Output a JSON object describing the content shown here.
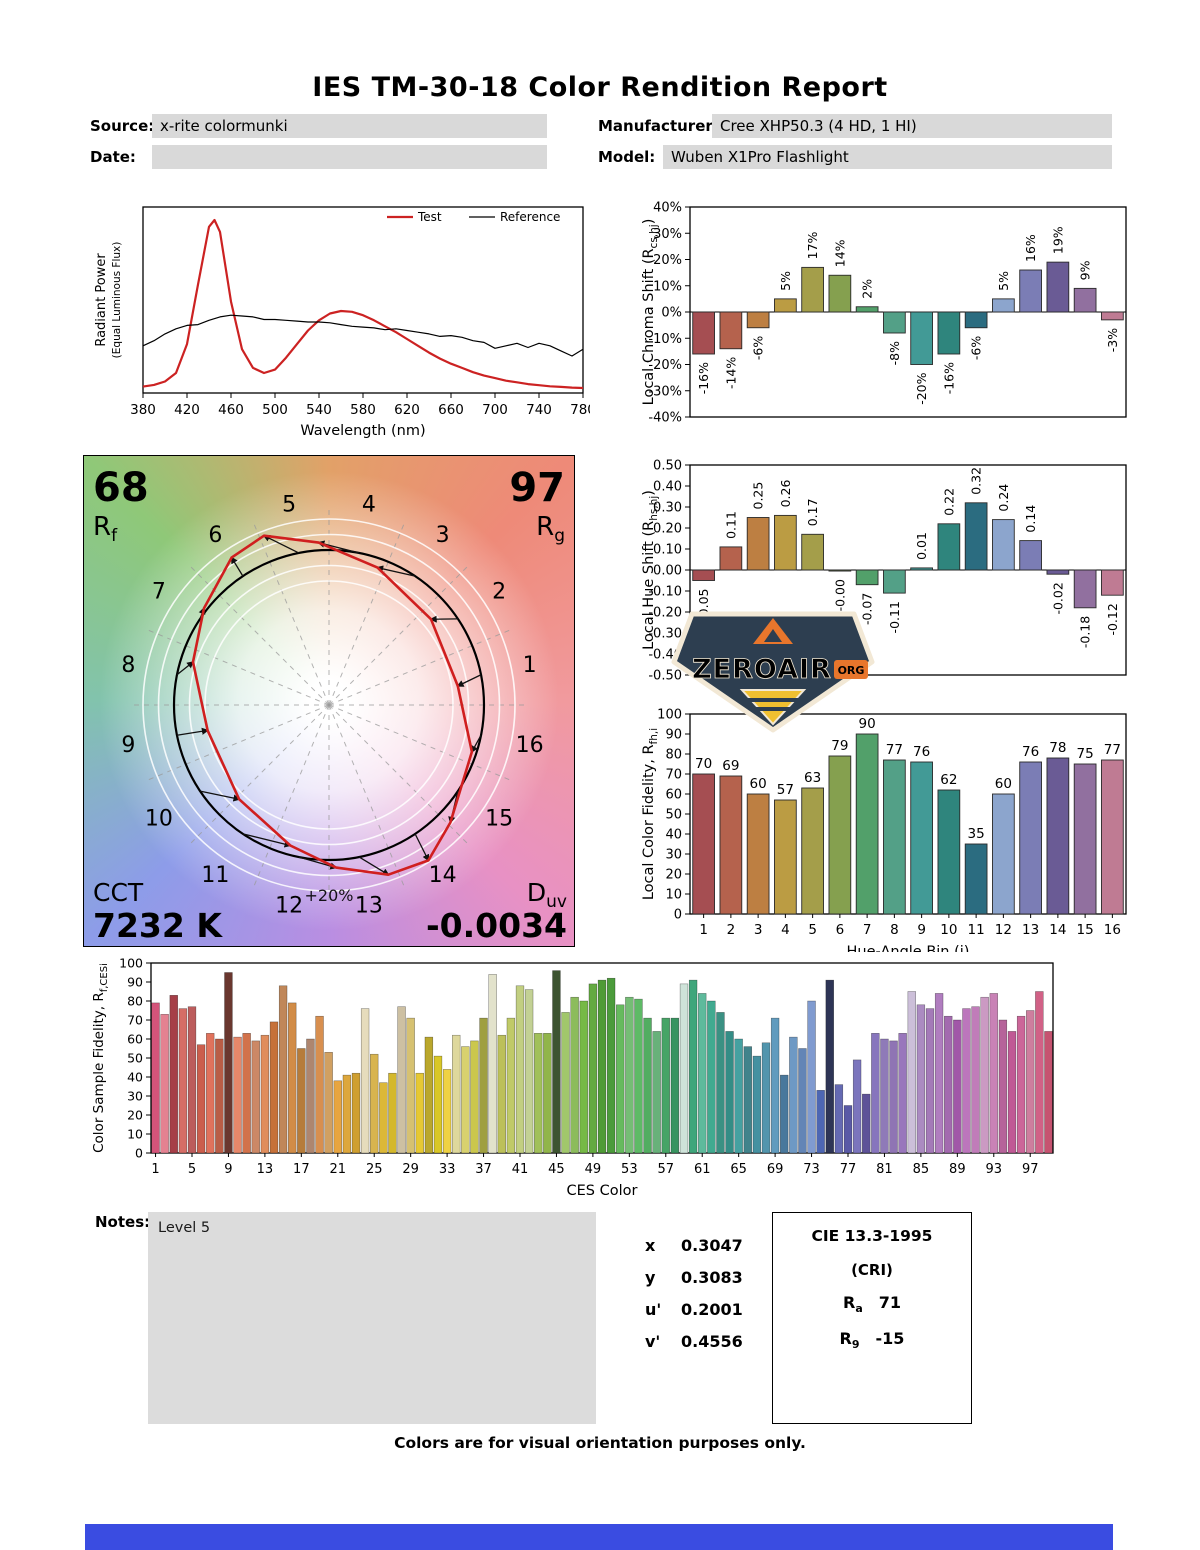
{
  "page": {
    "title": "IES TM-30-18 Color Rendition Report",
    "footer_note": "Colors are for visual orientation purposes only."
  },
  "header": {
    "source_label": "Source:",
    "source_value": "x-rite colormunki",
    "date_label": "Date:",
    "date_value": "",
    "manufacturer_label": "Manufacturer:",
    "manufacturer_value": "Cree XHP50.3 (4 HD, 1 HI)",
    "model_label": "Model:",
    "model_value": "Wuben X1Pro Flashlight"
  },
  "notes": {
    "label": "Notes:",
    "text": "Level 5"
  },
  "chromaticity": {
    "rows": [
      {
        "label": "x",
        "value": "0.3047"
      },
      {
        "label": "y",
        "value": "0.3083"
      },
      {
        "label": "u'",
        "value": "0.2001"
      },
      {
        "label": "v'",
        "value": "0.4556"
      }
    ]
  },
  "cri_box": {
    "title": "CIE 13.3-1995",
    "subtitle": "(CRI)",
    "rows": [
      {
        "base": "R",
        "sub": "a",
        "value": "71"
      },
      {
        "base": "R",
        "sub": "9",
        "value": "-15"
      }
    ]
  },
  "logo": {
    "name": "ZEROAIR",
    "org": "ORG"
  },
  "colors": {
    "field_bg": "#d9d9d9",
    "notes_bg": "#dcdcdc",
    "test_line": "#cc2222",
    "reference_line": "#000000",
    "footer_bar": "#3a4ce1",
    "logo_navy": "#2d3e50",
    "logo_cream": "#f2e8d5",
    "logo_orange": "#e8762c",
    "logo_gold": "#f0c030",
    "bin_colors": [
      "#a54e52",
      "#b5624d",
      "#bd7f42",
      "#bb9c43",
      "#a49e4a",
      "#85a04f",
      "#52a06a",
      "#53a087",
      "#429a96",
      "#2f857d",
      "#2b6c80",
      "#8ca5cd",
      "#7b7db5",
      "#6a5b95",
      "#91709f",
      "#bf7b93"
    ]
  },
  "chart_data": [
    {
      "id": "spd",
      "type": "line",
      "xlabel": "Wavelength (nm)",
      "ylabel_line1": "Radiant Power",
      "ylabel_line2": "(Equal Luminous Flux)",
      "xlim": [
        380,
        780
      ],
      "xticks": [
        380,
        420,
        460,
        500,
        540,
        580,
        620,
        660,
        700,
        740,
        780
      ],
      "legend": [
        {
          "label": "Test",
          "color": "#cc2222",
          "text_color": "#cc2222",
          "width": 2.2
        },
        {
          "label": "Reference",
          "color": "#000000",
          "text_color": "#000000",
          "width": 1.2
        }
      ],
      "series": [
        {
          "name": "Test",
          "color": "#cc2222",
          "width": 2.2,
          "x": [
            380,
            390,
            400,
            410,
            420,
            430,
            440,
            445,
            450,
            460,
            470,
            480,
            490,
            500,
            510,
            520,
            530,
            540,
            550,
            560,
            570,
            580,
            590,
            600,
            610,
            620,
            630,
            640,
            650,
            660,
            670,
            680,
            690,
            700,
            710,
            720,
            730,
            740,
            750,
            760,
            770,
            780
          ],
          "values": [
            0.02,
            0.03,
            0.05,
            0.1,
            0.27,
            0.62,
            0.96,
            1.0,
            0.93,
            0.52,
            0.24,
            0.13,
            0.1,
            0.12,
            0.19,
            0.27,
            0.35,
            0.41,
            0.45,
            0.465,
            0.46,
            0.44,
            0.41,
            0.375,
            0.34,
            0.3,
            0.26,
            0.22,
            0.185,
            0.155,
            0.13,
            0.105,
            0.085,
            0.07,
            0.055,
            0.045,
            0.035,
            0.028,
            0.022,
            0.018,
            0.014,
            0.012
          ]
        },
        {
          "name": "Reference",
          "color": "#000000",
          "width": 1.2,
          "x": [
            380,
            390,
            400,
            410,
            420,
            430,
            440,
            450,
            460,
            470,
            480,
            490,
            500,
            510,
            520,
            530,
            540,
            550,
            560,
            570,
            580,
            590,
            600,
            610,
            620,
            630,
            640,
            650,
            660,
            670,
            680,
            690,
            700,
            710,
            720,
            730,
            740,
            750,
            760,
            770,
            780
          ],
          "values": [
            0.26,
            0.29,
            0.33,
            0.36,
            0.38,
            0.385,
            0.41,
            0.43,
            0.44,
            0.435,
            0.43,
            0.415,
            0.415,
            0.41,
            0.405,
            0.4,
            0.4,
            0.395,
            0.385,
            0.375,
            0.37,
            0.365,
            0.355,
            0.36,
            0.35,
            0.34,
            0.33,
            0.315,
            0.32,
            0.31,
            0.29,
            0.28,
            0.245,
            0.26,
            0.275,
            0.25,
            0.275,
            0.26,
            0.23,
            0.2,
            0.24
          ]
        }
      ]
    },
    {
      "id": "chroma_shift",
      "type": "bar",
      "ylabel": {
        "pre": "Local Chroma Shift (R",
        "sub": "cs,hj",
        "post": ")"
      },
      "values": [
        -16,
        -14,
        -6,
        5,
        17,
        14,
        2,
        -8,
        -20,
        -16,
        -6,
        5,
        16,
        19,
        9,
        -3
      ],
      "bar_labels": [
        "-16%",
        "-14%",
        "-6%",
        "5%",
        "17%",
        "14%",
        "2%",
        "-8%",
        "-20%",
        "-16%",
        "-6%",
        "5%",
        "16%",
        "19%",
        "9%",
        "-3%"
      ],
      "ylim": [
        -40,
        40
      ],
      "ytick_values": [
        40,
        30,
        20,
        10,
        0,
        -10,
        -20,
        -30,
        -40
      ],
      "ytick_labels": [
        "40%",
        "30%",
        "20%",
        "10%",
        "0%",
        "-10%",
        "-20%",
        "-30%",
        "-40%"
      ]
    },
    {
      "id": "hue_shift",
      "type": "bar",
      "ylabel": {
        "pre": "Local Hue Shift (R",
        "sub": "hs,hj",
        "post": ")"
      },
      "values": [
        -0.05,
        0.11,
        0.25,
        0.26,
        0.17,
        -0.005,
        -0.07,
        -0.11,
        0.01,
        0.22,
        0.32,
        0.24,
        0.14,
        -0.02,
        -0.18,
        -0.12
      ],
      "bar_labels": [
        "-0.05",
        "0.11",
        "0.25",
        "0.26",
        "0.17",
        "-0.00",
        "-0.07",
        "-0.11",
        "0.01",
        "0.22",
        "0.32",
        "0.24",
        "0.14",
        "-0.02",
        "-0.18",
        "-0.12"
      ],
      "ylim": [
        -0.5,
        0.5
      ],
      "ytick_values": [
        0.5,
        0.4,
        0.3,
        0.2,
        0.1,
        0,
        -0.1,
        -0.2,
        -0.3,
        -0.4,
        -0.5
      ],
      "ytick_labels": [
        "0.50",
        "0.40",
        "0.30",
        "0.20",
        "0.10",
        "0.00",
        "-0.10",
        "-0.20",
        "-0.30",
        "-0.40",
        "-0.50"
      ]
    },
    {
      "id": "local_fidelity",
      "type": "bar",
      "xlabel": "Hue-Angle Bin (j)",
      "ylabel": {
        "pre": "Local Color Fidelity, R",
        "sub": "fh,i",
        "post": ""
      },
      "categories": [
        1,
        2,
        3,
        4,
        5,
        6,
        7,
        8,
        9,
        10,
        11,
        12,
        13,
        14,
        15,
        16
      ],
      "values": [
        70,
        69,
        60,
        57,
        63,
        79,
        90,
        77,
        76,
        62,
        35,
        60,
        76,
        78,
        75,
        77
      ],
      "bar_labels": [
        "70",
        "69",
        "60",
        "57",
        "63",
        "79",
        "90",
        "77",
        "76",
        "62",
        "35",
        "60",
        "76",
        "78",
        "75",
        "77"
      ],
      "ylim": [
        0,
        100
      ],
      "ytick_values": [
        0,
        10,
        20,
        30,
        40,
        50,
        60,
        70,
        80,
        90,
        100
      ]
    },
    {
      "id": "ces_fidelity",
      "type": "bar",
      "xlabel": "CES Color",
      "ylabel": {
        "pre": "Color Sample Fidelity, R",
        "sub": "f,CESi",
        "post": ""
      },
      "xticks": [
        1,
        5,
        9,
        13,
        17,
        21,
        25,
        29,
        33,
        37,
        41,
        45,
        49,
        53,
        57,
        61,
        65,
        69,
        73,
        77,
        81,
        85,
        89,
        93,
        97
      ],
      "ylim": [
        0,
        100
      ],
      "ytick_values": [
        0,
        10,
        20,
        30,
        40,
        50,
        60,
        70,
        80,
        90,
        100
      ],
      "values": [
        79,
        73,
        83,
        76,
        77,
        57,
        63,
        60,
        95,
        61,
        63,
        59,
        62,
        69,
        88,
        79,
        55,
        60,
        72,
        53,
        38,
        41,
        42,
        76,
        52,
        37,
        42,
        77,
        71,
        42,
        61,
        51,
        44,
        62,
        56,
        59,
        71,
        94,
        62,
        71,
        88,
        86,
        63,
        63,
        96,
        74,
        82,
        80,
        89,
        91,
        92,
        78,
        82,
        81,
        71,
        64,
        71,
        71,
        89,
        91,
        84,
        80,
        74,
        64,
        60,
        56,
        51,
        58,
        71,
        41,
        61,
        55,
        80,
        33,
        91,
        36,
        25,
        49,
        31,
        63,
        60,
        59,
        63,
        85,
        78,
        76,
        84,
        72,
        70,
        76,
        77,
        82,
        84,
        70,
        64,
        72,
        75,
        85,
        64
      ],
      "bar_colors": [
        "hsl(342,60%,58%)",
        "hsl(350,65%,70%)",
        "hsl(355,45%,45%)",
        "hsl(4,58%,62%)",
        "hsl(0,42%,55%)",
        "hsl(8,55%,55%)",
        "hsl(10,68%,62%)",
        "hsl(12,45%,50%)",
        "hsl(8,38%,30%)",
        "hsl(14,72%,66%)",
        "hsl(17,60%,56%)",
        "hsl(20,50%,60%)",
        "hsl(22,68%,62%)",
        "hsl(24,55%,50%)",
        "hsl(27,45%,55%)",
        "hsl(30,60%,55%)",
        "hsl(32,52%,47%)",
        "hsl(22,28%,56%)",
        "hsl(28,64%,58%)",
        "hsl(34,55%,60%)",
        "hsl(36,78%,58%)",
        "hsl(40,70%,55%)",
        "hsl(42,62%,50%)",
        "hsl(46,45%,82%)",
        "hsl(44,64%,58%)",
        "hsl(47,70%,54%)",
        "hsl(50,66%,50%)",
        "hsl(42,30%,72%)",
        "hsl(48,55%,64%)",
        "hsl(50,78%,55%)",
        "hsl(52,62%,45%)",
        "hsl(54,70%,50%)",
        "hsl(50,84%,60%)",
        "hsl(55,50%,74%)",
        "hsl(56,58%,64%)",
        "hsl(58,55%,55%)",
        "hsl(60,42%,44%)",
        "hsl(60,28%,84%)",
        "hsl(62,45%,55%)",
        "hsl(66,48%,60%)",
        "hsl(70,45%,66%)",
        "hsl(74,40%,70%)",
        "hsl(78,45%,55%)",
        "hsl(80,42%,50%)",
        "hsl(100,26%,26%)",
        "hsl(85,45%,60%)",
        "hsl(90,42%,55%)",
        "hsl(95,45%,50%)",
        "hsl(100,45%,46%)",
        "hsl(105,48%,41%)",
        "hsl(110,45%,42%)",
        "hsl(115,40%,55%)",
        "hsl(120,35%,60%)",
        "hsl(125,40%,55%)",
        "hsl(130,36%,50%)",
        "hsl(135,32%,55%)",
        "hsl(140,40%,46%)",
        "hsl(146,45%,40%)",
        "hsl(150,28%,85%)",
        "hsl(155,45%,45%)",
        "hsl(160,40%,55%)",
        "hsl(165,45%,46%)",
        "hsl(170,42%,40%)",
        "hsl(175,46%,38%)",
        "hsl(180,40%,45%)",
        "hsl(186,36%,40%)",
        "hsl(190,40%,45%)",
        "hsl(196,36%,50%)",
        "hsl(202,42%,56%)",
        "hsl(206,36%,45%)",
        "hsl(210,42%,60%)",
        "hsl(215,36%,55%)",
        "hsl(220,46%,66%)",
        "hsl(225,40%,50%)",
        "hsl(230,30%,26%)",
        "hsl(236,34%,55%)",
        "hsl(240,30%,50%)",
        "hsl(245,35%,60%)",
        "hsl(250,30%,46%)",
        "hsl(255,35%,60%)",
        "hsl(260,30%,60%)",
        "hsl(265,30%,58%)",
        "hsl(270,34%,60%)",
        "hsl(270,26%,80%)",
        "hsl(276,30%,65%)",
        "hsl(281,30%,60%)",
        "hsl(286,34%,62%)",
        "hsl(290,30%,55%)",
        "hsl(295,32%,50%)",
        "hsl(300,34%,60%)",
        "hsl(306,35%,62%)",
        "hsl(310,32%,70%)",
        "hsl(316,40%,65%)",
        "hsl(320,36%,55%)",
        "hsl(325,45%,55%)",
        "hsl(330,50%,60%)",
        "hsl(336,45%,65%)",
        "hsl(340,55%,60%)",
        "hsl(345,50%,55%)"
      ]
    },
    {
      "id": "color_vector_graphic",
      "type": "radar",
      "rf_value": "68",
      "rf_base": "R",
      "rf_sub": "f",
      "rg_value": "97",
      "rg_base": "R",
      "rg_sub": "g",
      "cct_label": "CCT",
      "cct_value": "7232 K",
      "duv_base": "D",
      "duv_sub": "uv",
      "duv_value": "-0.0034",
      "ring_label": "+20%",
      "note": "test polygon radii = 1 + chroma_shift/100 at each of 16 hue-angle bins; hue_shift values (rad) rotate each vertex"
    }
  ]
}
